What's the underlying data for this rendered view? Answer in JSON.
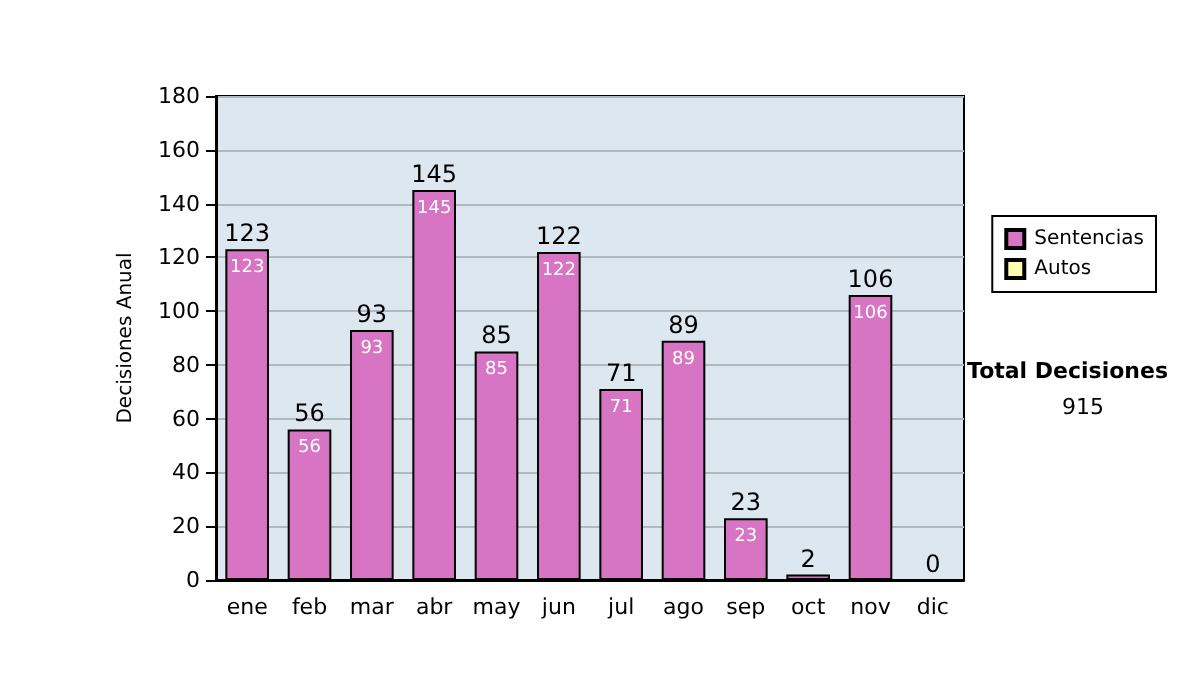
{
  "chart_data": {
    "type": "bar",
    "ylabel": "Decisiones Anual",
    "categories": [
      "ene",
      "feb",
      "mar",
      "abr",
      "may",
      "jun",
      "jul",
      "ago",
      "sep",
      "oct",
      "nov",
      "dic"
    ],
    "series": [
      {
        "name": "Sentencias",
        "color": "#d874c4",
        "values": [
          123,
          56,
          93,
          145,
          85,
          122,
          71,
          89,
          23,
          2,
          106,
          0
        ],
        "value_labels": [
          "123",
          "56",
          "93",
          "145",
          "85",
          "122",
          "71",
          "89",
          "23",
          null,
          "106",
          null
        ]
      },
      {
        "name": "Autos",
        "color": "#ffffb0",
        "values": [
          null,
          null,
          null,
          null,
          null,
          null,
          null,
          null,
          null,
          null,
          null,
          null
        ]
      }
    ],
    "stacked": true,
    "totals": [
      "123",
      "56",
      "93",
      "145",
      "85",
      "122",
      "71",
      "89",
      "23",
      "2",
      "106",
      "0"
    ],
    "ylim": [
      0,
      180
    ],
    "yticks": [
      0,
      20,
      40,
      60,
      80,
      100,
      120,
      140,
      160,
      180
    ],
    "grid": "y",
    "legend": "right",
    "annotations": [
      "Total Decisiones",
      "915"
    ]
  }
}
